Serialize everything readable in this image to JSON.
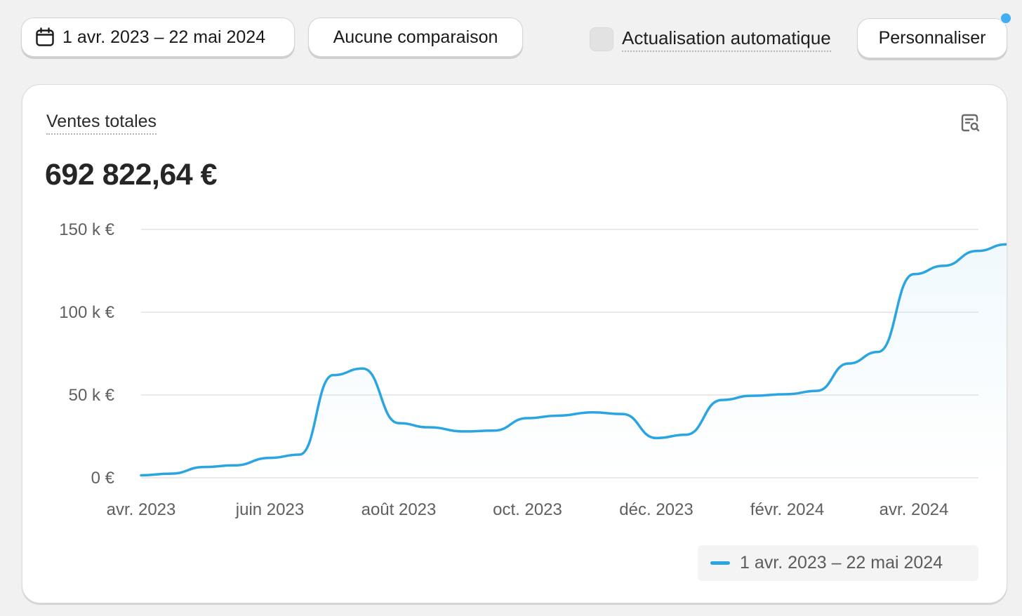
{
  "toolbar": {
    "date_range_label": "1 avr. 2023 – 22 mai 2024",
    "comparison_label": "Aucune comparaison",
    "auto_refresh_label": "Actualisation automatique",
    "customize_label": "Personnaliser"
  },
  "colors": {
    "accent": "#2aa5e2",
    "notification_dot": "#42aef3",
    "background": "#f1f1f1",
    "card": "#ffffff"
  },
  "icons": {
    "date_button": "calendar-icon",
    "card_action": "explore-data-icon"
  },
  "card": {
    "title": "Ventes totales",
    "total": "692 822,64 €"
  },
  "chart_data": {
    "type": "area",
    "title": "Ventes totales",
    "x_tick_labels": [
      "avr. 2023",
      "juin 2023",
      "août 2023",
      "oct. 2023",
      "déc. 2023",
      "févr. 2024",
      "avr. 2024"
    ],
    "y_tick_labels": [
      "0 €",
      "50 k €",
      "100 k €",
      "150 k €"
    ],
    "y_ticks": [
      0,
      50000,
      100000,
      150000
    ],
    "ylim": [
      0,
      150000
    ],
    "xlim": [
      "2023-04-01",
      "2024-05-22"
    ],
    "grid": true,
    "legend_position": "bottom-right",
    "series": [
      {
        "name": "1 avr. 2023 – 22 mai 2024",
        "color": "#2aa5e2",
        "points": [
          [
            "2023-04-01",
            1500
          ],
          [
            "2023-04-15",
            2500
          ],
          [
            "2023-05-01",
            6500
          ],
          [
            "2023-05-15",
            7500
          ],
          [
            "2023-06-01",
            12000
          ],
          [
            "2023-06-15",
            14000
          ],
          [
            "2023-07-01",
            62000
          ],
          [
            "2023-07-15",
            66000
          ],
          [
            "2023-08-01",
            33000
          ],
          [
            "2023-08-15",
            30500
          ],
          [
            "2023-09-01",
            28000
          ],
          [
            "2023-09-15",
            28500
          ],
          [
            "2023-10-01",
            36000
          ],
          [
            "2023-10-15",
            37500
          ],
          [
            "2023-11-01",
            39500
          ],
          [
            "2023-11-15",
            38500
          ],
          [
            "2023-12-01",
            24000
          ],
          [
            "2023-12-15",
            26000
          ],
          [
            "2024-01-01",
            47000
          ],
          [
            "2024-01-15",
            49500
          ],
          [
            "2024-02-01",
            50500
          ],
          [
            "2024-02-15",
            52500
          ],
          [
            "2024-03-01",
            69000
          ],
          [
            "2024-03-15",
            76000
          ],
          [
            "2024-04-01",
            123000
          ],
          [
            "2024-04-15",
            128000
          ],
          [
            "2024-05-01",
            137000
          ],
          [
            "2024-05-15",
            141000
          ],
          [
            "2024-05-22",
            141500
          ]
        ]
      }
    ]
  }
}
